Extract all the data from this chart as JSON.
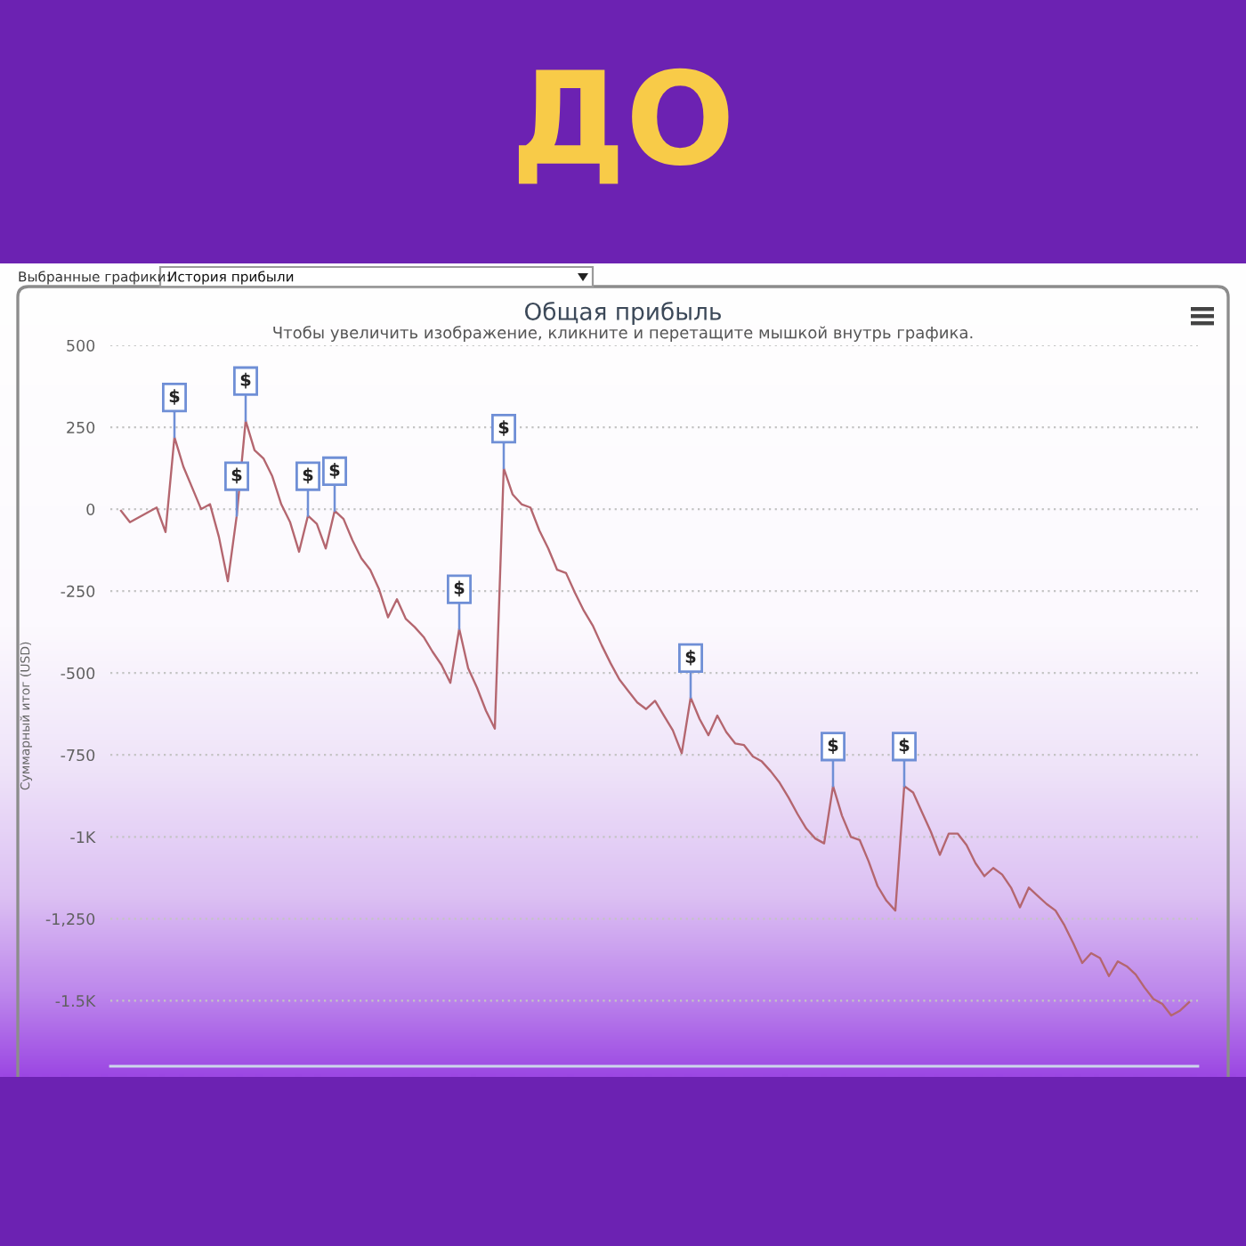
{
  "chart_data": {
    "type": "line",
    "title": "Общая прибыль",
    "subtitle": "Чтобы увеличить изображение, кликните и перетащите мышкой внутрь графика.",
    "ylabel": "Суммарный итог (USD)",
    "annotations": [
      "ДО",
      "Выбранные графики:",
      "История прибыли"
    ],
    "categories": [
      null,
      null,
      null,
      null,
      null,
      null,
      null,
      null,
      null,
      null,
      null,
      null,
      null,
      null,
      null,
      null,
      null,
      null,
      null,
      null,
      null,
      null,
      null,
      null,
      null,
      null,
      null,
      null,
      null,
      null,
      null,
      null,
      null,
      null,
      null,
      null,
      null,
      null,
      null,
      null,
      null,
      null,
      null,
      null,
      null,
      null,
      null,
      null,
      null,
      null,
      null,
      null,
      null,
      null,
      null,
      null,
      null,
      null,
      null,
      null,
      null,
      null,
      null,
      null,
      null,
      null,
      null,
      null,
      null,
      null,
      null,
      null,
      null,
      null,
      null,
      null,
      null,
      null,
      null,
      null,
      null,
      null,
      null,
      null,
      null,
      null,
      null,
      null,
      null,
      null,
      null,
      null,
      null,
      null,
      null,
      null,
      null,
      null,
      null,
      null,
      null,
      null,
      null,
      null,
      null,
      null,
      null,
      null,
      null,
      null,
      null,
      null,
      null,
      null,
      null,
      null,
      null,
      null,
      null,
      null,
      null
    ],
    "series": [
      {
        "color": "#b4666f",
        "values": [
          -5,
          -40,
          -25,
          -10,
          5,
          -70,
          220,
          130,
          65,
          0,
          15,
          -85,
          -220,
          -20,
          270,
          180,
          155,
          100,
          15,
          -40,
          -130,
          -20,
          -45,
          -120,
          -5,
          -30,
          -95,
          -150,
          -185,
          -245,
          -330,
          -275,
          -335,
          -360,
          -390,
          -435,
          -475,
          -530,
          -365,
          -485,
          -545,
          -615,
          -670,
          125,
          45,
          15,
          5,
          -65,
          -120,
          -185,
          -195,
          -255,
          -310,
          -355,
          -415,
          -470,
          -520,
          -555,
          -590,
          -610,
          -585,
          -630,
          -675,
          -745,
          -575,
          -640,
          -690,
          -630,
          -680,
          -715,
          -720,
          -755,
          -770,
          -800,
          -835,
          -880,
          -930,
          -975,
          -1005,
          -1020,
          -845,
          -935,
          -1000,
          -1010,
          -1075,
          -1150,
          -1195,
          -1225,
          -845,
          -865,
          -925,
          -985,
          -1055,
          -990,
          -990,
          -1025,
          -1080,
          -1120,
          -1095,
          -1115,
          -1155,
          -1215,
          -1155,
          -1180,
          -1205,
          -1225,
          -1270,
          -1325,
          -1385,
          -1355,
          -1370,
          -1425,
          -1380,
          -1395,
          -1420,
          -1460,
          -1495,
          -1510,
          -1545,
          -1530,
          -1505
        ],
        "value_labels": [
          null,
          null,
          null,
          null,
          null,
          null,
          "$",
          null,
          null,
          null,
          null,
          null,
          null,
          "$",
          "$",
          null,
          null,
          null,
          null,
          null,
          null,
          "$",
          null,
          null,
          "$",
          null,
          null,
          null,
          null,
          null,
          null,
          null,
          null,
          null,
          null,
          null,
          null,
          null,
          "$",
          null,
          null,
          null,
          null,
          "$",
          null,
          null,
          null,
          null,
          null,
          null,
          null,
          null,
          null,
          null,
          null,
          null,
          null,
          null,
          null,
          null,
          null,
          null,
          null,
          null,
          "$",
          null,
          null,
          null,
          null,
          null,
          null,
          null,
          null,
          null,
          null,
          null,
          null,
          null,
          null,
          null,
          "$",
          null,
          null,
          null,
          null,
          null,
          null,
          null,
          "$",
          null,
          null,
          null,
          null,
          null,
          null,
          null,
          null,
          null,
          null,
          null,
          null,
          null,
          null,
          null,
          null,
          null,
          null,
          null,
          null,
          null,
          null,
          null,
          null,
          null,
          null,
          null,
          null,
          null,
          null,
          null,
          null
        ]
      }
    ],
    "ylim": [
      -1700,
      500
    ],
    "yticks": [
      500,
      250,
      0,
      -250,
      -500,
      -750,
      {
        "value": -1000,
        "label": "-1K"
      },
      {
        "value": -1250,
        "label": "-1,250"
      },
      {
        "value": -1500,
        "label": "-1.5K"
      }
    ],
    "grid": "y",
    "tick_labels": "y"
  }
}
